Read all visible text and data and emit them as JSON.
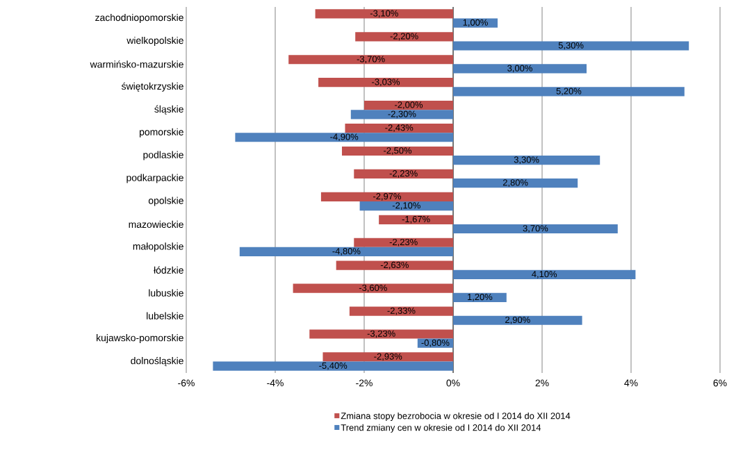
{
  "chart_data": {
    "type": "bar",
    "orientation": "horizontal",
    "categories": [
      "zachodniopomorskie",
      "wielkopolskie",
      "warmińsko-mazurskie",
      "świętokrzyskie",
      "śląskie",
      "pomorskie",
      "podlaskie",
      "podkarpackie",
      "opolskie",
      "mazowieckie",
      "małopolskie",
      "łódzkie",
      "lubuskie",
      "lubelskie",
      "kujawsko-pomorskie",
      "dolnośląskie"
    ],
    "series": [
      {
        "name": "Zmiana stopy bezrobocia w okresie od I 2014 do XII 2014",
        "color": "#c0504d",
        "values": [
          -3.1,
          -2.2,
          -3.7,
          -3.03,
          -2.0,
          -2.43,
          -2.5,
          -2.23,
          -2.97,
          -1.67,
          -2.23,
          -2.63,
          -3.6,
          -2.33,
          -3.23,
          -2.93
        ],
        "value_labels": [
          "-3,10%",
          "-2,20%",
          "-3,70%",
          "-3,03%",
          "-2,00%",
          "-2,43%",
          "-2,50%",
          "-2,23%",
          "-2,97%",
          "-1,67%",
          "-2,23%",
          "-2,63%",
          "-3,60%",
          "-2,33%",
          "-3,23%",
          "-2,93%"
        ]
      },
      {
        "name": "Trend zmiany cen w okresie od I 2014 do XII 2014",
        "color": "#4f81bd",
        "values": [
          1.0,
          5.3,
          3.0,
          5.2,
          -2.3,
          -4.9,
          3.3,
          2.8,
          -2.1,
          3.7,
          -4.8,
          4.1,
          1.2,
          2.9,
          -0.8,
          -5.4
        ],
        "value_labels": [
          "1,00%",
          "5,30%",
          "3,00%",
          "5,20%",
          "-2,30%",
          "-4,90%",
          "3,30%",
          "2,80%",
          "-2,10%",
          "3,70%",
          "-4,80%",
          "4,10%",
          "1,20%",
          "2,90%",
          "-0,80%",
          "-5,40%"
        ]
      }
    ],
    "xlim": [
      -6,
      6
    ],
    "xticks": [
      {
        "value": -6,
        "label": "-6%"
      },
      {
        "value": -4,
        "label": "-4%"
      },
      {
        "value": -2,
        "label": "-2%"
      },
      {
        "value": 0,
        "label": "0%"
      },
      {
        "value": 2,
        "label": "2%"
      },
      {
        "value": 4,
        "label": "4%"
      },
      {
        "value": 6,
        "label": "6%"
      }
    ],
    "grid": "x",
    "legend": "bottom"
  }
}
